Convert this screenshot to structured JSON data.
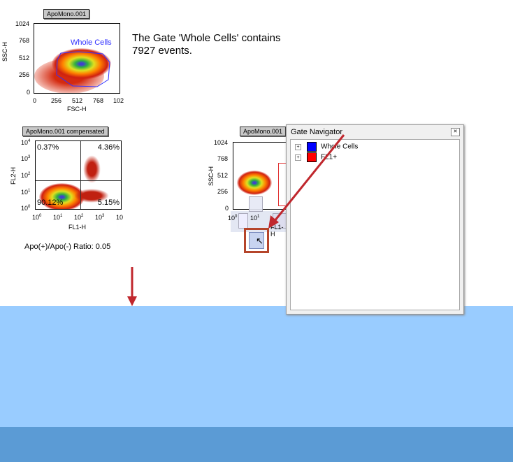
{
  "plot1": {
    "label": "ApoMono.001",
    "xlabel": "FSC-H",
    "ylabel": "SSC-H",
    "yticks": [
      "1024",
      "768",
      "512",
      "256",
      "0"
    ],
    "xticks": [
      "0",
      "256",
      "512",
      "768",
      "102"
    ],
    "gate_name": "Whole Cells"
  },
  "stats_text": {
    "line1": "The Gate 'Whole Cells' contains",
    "line2": "7927 events."
  },
  "plot2": {
    "label": "ApoMono.001 compensated",
    "xlabel": "FL1-H",
    "ylabel": "FL2-H",
    "yticks": [
      "10",
      "10",
      "10",
      "10",
      "10"
    ],
    "yexp": [
      "4",
      "3",
      "2",
      "1",
      "0"
    ],
    "xticks": [
      "10",
      "10",
      "10",
      "10",
      "10"
    ],
    "xexp": [
      "0",
      "1",
      "2",
      "3",
      ""
    ],
    "quadrants": {
      "ul": "0.37%",
      "ur": "4.36%",
      "ll": "90.12%",
      "lr": "5.15%"
    }
  },
  "ratio_text": "Apo(+)/Apo(-) Ratio: 0.05",
  "plot3": {
    "label": "ApoMono.001",
    "ylabel": "SSC-H",
    "yticks": [
      "1024",
      "768",
      "512",
      "256",
      "0"
    ],
    "xtick0": "10",
    "xexp0": "0",
    "xtick1": "10",
    "xexp1": "1",
    "xlabel": "FL1-H"
  },
  "gate_navigator": {
    "title": "Gate Navigator",
    "items": [
      {
        "label": "Whole Cells",
        "color": "#0000ff"
      },
      {
        "label": "FL1+",
        "color": "#ff0000"
      }
    ]
  },
  "colors": {
    "arrow": "#c0272d",
    "highlight": "#b5452b",
    "desktop_light": "#99ccff",
    "desktop_dark": "#5b9bd5"
  }
}
